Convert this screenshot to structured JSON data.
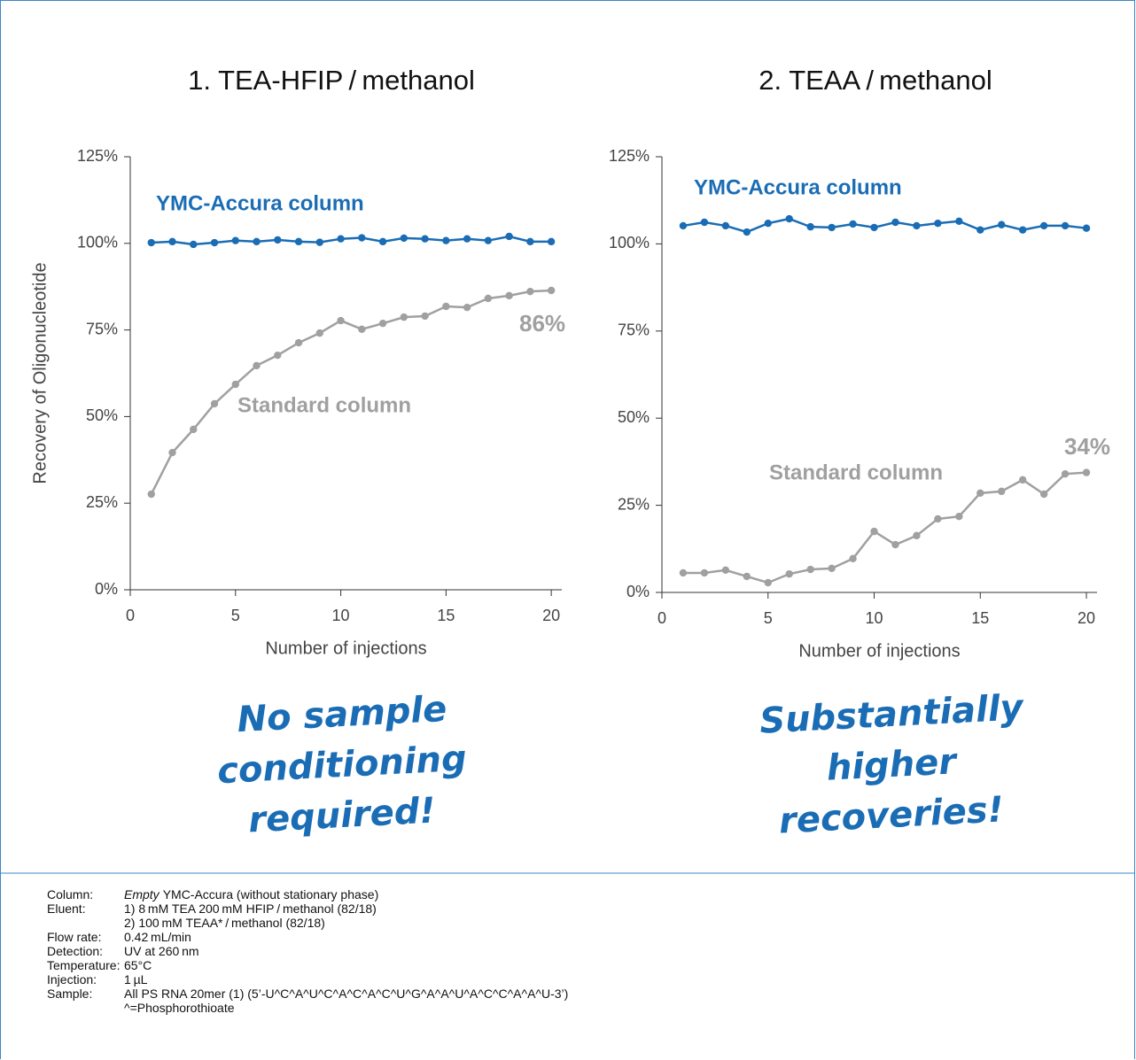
{
  "chart_data": [
    {
      "type": "line",
      "title": "1. TEA-HFIP / methanol",
      "ylabel": "Recovery of Oligonucleotide",
      "xlabel": "Number of injections",
      "x": [
        1,
        2,
        3,
        4,
        5,
        6,
        7,
        8,
        9,
        10,
        11,
        12,
        13,
        14,
        15,
        16,
        17,
        18,
        19,
        20
      ],
      "xlim": [
        0,
        20.5
      ],
      "xticks": [
        0,
        5,
        10,
        15,
        20
      ],
      "ylim": [
        0,
        125
      ],
      "yticks": [
        {
          "value": 0,
          "label": "0%"
        },
        {
          "value": 25,
          "label": "25%"
        },
        {
          "value": 50,
          "label": "50%"
        },
        {
          "value": 75,
          "label": "75%"
        },
        {
          "value": 100,
          "label": "100%"
        },
        {
          "value": 125,
          "label": "125%"
        }
      ],
      "series": [
        {
          "name": "YMC-Accura column",
          "color": "#1a6db5",
          "values": [
            100.2,
            100.5,
            99.7,
            100.2,
            100.8,
            100.5,
            101,
            100.5,
            100.3,
            101.3,
            101.6,
            100.5,
            101.5,
            101.3,
            100.8,
            101.3,
            100.8,
            102,
            100.5,
            100.5
          ]
        },
        {
          "name": "Standard column",
          "color": "#a0a0a0",
          "values": [
            27.6,
            39.6,
            46.3,
            53.7,
            59.3,
            64.7,
            67.7,
            71.3,
            74.1,
            77.7,
            75.2,
            76.9,
            78.7,
            79,
            81.8,
            81.5,
            84.1,
            84.9,
            86.1,
            86.4
          ],
          "end_label": "86%"
        }
      ],
      "callout": [
        "No sample",
        "conditioning",
        "required!"
      ]
    },
    {
      "type": "line",
      "title": "2. TEAA / methanol",
      "xlabel": "Number of injections",
      "x": [
        1,
        2,
        3,
        4,
        5,
        6,
        7,
        8,
        9,
        10,
        11,
        12,
        13,
        14,
        15,
        16,
        17,
        18,
        19,
        20
      ],
      "xlim": [
        0,
        20.5
      ],
      "xticks": [
        0,
        5,
        10,
        15,
        20
      ],
      "ylim": [
        0,
        125
      ],
      "yticks": [
        {
          "value": 0,
          "label": "0%"
        },
        {
          "value": 25,
          "label": "25%"
        },
        {
          "value": 50,
          "label": "50%"
        },
        {
          "value": 75,
          "label": "75%"
        },
        {
          "value": 100,
          "label": "100%"
        },
        {
          "value": 125,
          "label": "125%"
        }
      ],
      "series": [
        {
          "name": "YMC-Accura column",
          "color": "#1a6db5",
          "values": [
            105.2,
            106.2,
            105.2,
            103.4,
            105.9,
            107.2,
            104.9,
            104.7,
            105.7,
            104.7,
            106.2,
            105.2,
            105.9,
            106.5,
            104,
            105.5,
            104,
            105.2,
            105.2,
            104.5
          ]
        },
        {
          "name": "Standard column",
          "color": "#a0a0a0",
          "values": [
            5.6,
            5.6,
            6.4,
            4.6,
            2.8,
            5.3,
            6.6,
            6.9,
            9.7,
            17.5,
            13.7,
            16.3,
            21.1,
            21.8,
            28.5,
            29,
            32.3,
            28.2,
            34,
            34.4
          ],
          "end_label": "34%"
        }
      ],
      "callout": [
        "Substantially",
        "higher",
        "recoveries!"
      ]
    }
  ],
  "notes": [
    {
      "label": "Column:",
      "emphasis": "Empty",
      "lines": [
        "YMC-Accura (without stationary phase)"
      ]
    },
    {
      "label": "Eluent:",
      "lines": [
        "1) 8 mM TEA 200 mM HFIP / methanol (82/18)",
        "2) 100 mM TEAA* / methanol (82/18)"
      ]
    },
    {
      "label": "Flow rate:",
      "lines": [
        "0.42 mL/min"
      ]
    },
    {
      "label": "Detection:",
      "lines": [
        "UV at 260 nm"
      ]
    },
    {
      "label": "Temperature:",
      "lines": [
        "65°C"
      ]
    },
    {
      "label": "Injection:",
      "lines": [
        "1 µL"
      ]
    },
    {
      "label": "Sample:",
      "lines": [
        "All PS RNA 20mer (1) (5’-U^C^A^U^C^A^C^A^C^U^G^A^A^U^A^C^C^A^A^U-3’)",
        "^=Phosphorothioate"
      ]
    }
  ]
}
